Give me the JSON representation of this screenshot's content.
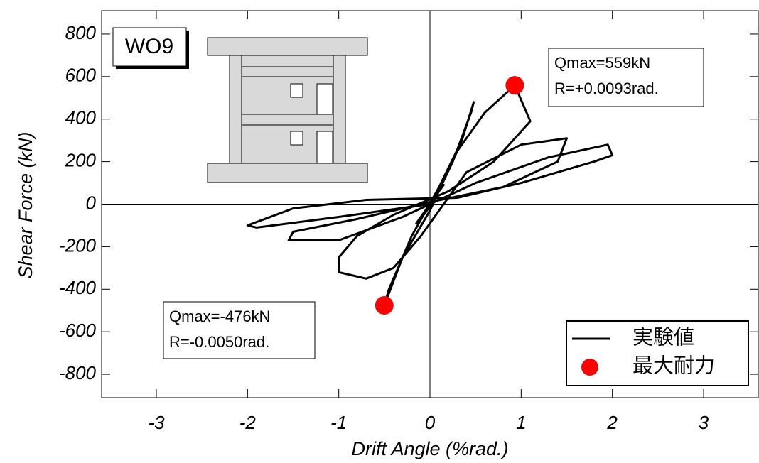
{
  "chart_data": {
    "type": "line",
    "label": "WO9",
    "x_label": "Drift Angle (%rad.)",
    "y_label": "Shear Force (kN)",
    "xlim": [
      -3.6,
      3.6
    ],
    "ylim": [
      -910,
      910
    ],
    "xticks": [
      -3,
      -2,
      -1,
      0,
      1,
      2,
      3
    ],
    "yticks": [
      800,
      600,
      400,
      200,
      0,
      -200,
      -400,
      -600,
      -800
    ],
    "series": [
      {
        "name": "実験値",
        "type": "line",
        "color": "#000000",
        "x": [
          0,
          0.08,
          0.15,
          0.05,
          -0.05,
          -0.15,
          -0.05,
          0.05,
          0.25,
          0.45,
          0.48,
          0.35,
          0.1,
          -0.2,
          -0.45,
          -0.5,
          -0.3,
          0,
          0.3,
          0.6,
          0.93,
          1.1,
          0.7,
          0.2,
          -0.4,
          -0.8,
          -1.0,
          -1.0,
          -0.7,
          -0.4,
          -0.1,
          0.4,
          1.0,
          1.5,
          1.4,
          0.8,
          0,
          -0.8,
          -1.5,
          -1.55,
          -1.0,
          -0.3,
          0.5,
          1.3,
          1.95,
          2.0,
          1.8,
          1.0,
          0.3,
          -0.7,
          -1.5,
          -2.0,
          -1.9,
          -1.0,
          0
        ],
        "values": [
          0,
          50,
          90,
          40,
          -30,
          -90,
          -40,
          20,
          200,
          430,
          480,
          300,
          80,
          -150,
          -400,
          -476,
          -250,
          -30,
          250,
          430,
          559,
          390,
          200,
          60,
          -50,
          -150,
          -250,
          -320,
          -350,
          -300,
          -150,
          150,
          280,
          310,
          200,
          80,
          10,
          -70,
          -130,
          -170,
          -170,
          -60,
          100,
          220,
          280,
          230,
          200,
          100,
          30,
          20,
          -20,
          -100,
          -110,
          -60,
          0
        ]
      },
      {
        "name": "最大耐力",
        "type": "scatter",
        "color": "#ff0000",
        "x": [
          0.93,
          -0.5
        ],
        "values": [
          559,
          -476
        ]
      }
    ],
    "annotations": [
      {
        "lines": [
          "Qmax=559kN",
          "R=+0.0093rad."
        ]
      },
      {
        "lines": [
          "Qmax=-476kN",
          "R=-0.0050rad."
        ]
      }
    ]
  }
}
